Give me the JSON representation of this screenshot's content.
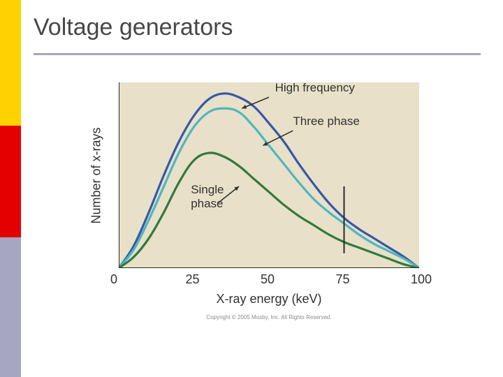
{
  "title": "Voltage generators",
  "colors": {
    "sidebar_yellow": "#ffd200",
    "sidebar_red": "#e40000",
    "sidebar_grey": "#a6a6c2",
    "title_text": "#474747",
    "underline": "#a6a6c2",
    "chart_bg": "#e8e0c8",
    "axis": "#2a2a2a",
    "tick_text": "#313131",
    "curve_high_freq": "#3558a8",
    "curve_three_phase": "#4fb6c0",
    "curve_single_phase": "#2f7a3e",
    "annot_text": "#313131"
  },
  "chart": {
    "type": "line",
    "xlabel": "X-ray energy (keV)",
    "ylabel": "Number of x-rays",
    "xlim": [
      0,
      100
    ],
    "ylim": [
      0,
      100
    ],
    "xtick_step": 25,
    "xticks": [
      0,
      25,
      50,
      75,
      100
    ],
    "yticks_visible": false,
    "background_color": "#e8e0c8",
    "axis_color": "#2a2a2a",
    "axis_width": 2,
    "label_fontsize": 18,
    "tick_fontsize": 18,
    "line_width": 3.2,
    "vertical_marker_x": 75,
    "vertical_marker_color": "#2a2a2a",
    "vertical_marker_width": 2,
    "vertical_marker_y_extent": [
      8,
      44
    ],
    "series": [
      {
        "name": "High frequency",
        "color": "#3558a8",
        "label_xy": [
          52,
          97
        ],
        "arrow_from": [
          50,
          92
        ],
        "arrow_to": [
          41,
          86
        ],
        "points": [
          [
            0,
            0
          ],
          [
            5,
            12
          ],
          [
            10,
            30
          ],
          [
            15,
            50
          ],
          [
            20,
            68
          ],
          [
            25,
            82
          ],
          [
            30,
            91
          ],
          [
            35,
            94
          ],
          [
            40,
            92
          ],
          [
            45,
            87
          ],
          [
            50,
            78
          ],
          [
            55,
            68
          ],
          [
            60,
            56
          ],
          [
            65,
            45
          ],
          [
            70,
            35
          ],
          [
            75,
            27
          ],
          [
            80,
            21
          ],
          [
            85,
            16
          ],
          [
            90,
            11
          ],
          [
            95,
            6
          ],
          [
            100,
            0
          ]
        ]
      },
      {
        "name": "Three phase",
        "color": "#4fb6c0",
        "label_xy": [
          58,
          79
        ],
        "arrow_from": [
          58,
          74
        ],
        "arrow_to": [
          48,
          66
        ],
        "points": [
          [
            0,
            0
          ],
          [
            5,
            10
          ],
          [
            10,
            26
          ],
          [
            15,
            44
          ],
          [
            20,
            62
          ],
          [
            25,
            76
          ],
          [
            30,
            84
          ],
          [
            35,
            86
          ],
          [
            40,
            84
          ],
          [
            45,
            76
          ],
          [
            50,
            66
          ],
          [
            55,
            56
          ],
          [
            60,
            46
          ],
          [
            65,
            37
          ],
          [
            70,
            30
          ],
          [
            75,
            24
          ],
          [
            80,
            18
          ],
          [
            85,
            13
          ],
          [
            90,
            9
          ],
          [
            95,
            5
          ],
          [
            100,
            0
          ]
        ]
      },
      {
        "name": "Single\nphase",
        "color": "#2f7a3e",
        "label_xy": [
          24,
          42
        ],
        "arrow_from": [
          33,
          35
        ],
        "arrow_to": [
          40,
          44
        ],
        "points": [
          [
            0,
            0
          ],
          [
            5,
            6
          ],
          [
            10,
            16
          ],
          [
            15,
            30
          ],
          [
            20,
            46
          ],
          [
            25,
            58
          ],
          [
            30,
            62
          ],
          [
            35,
            60
          ],
          [
            40,
            55
          ],
          [
            45,
            48
          ],
          [
            50,
            41
          ],
          [
            55,
            34
          ],
          [
            60,
            28
          ],
          [
            65,
            23
          ],
          [
            70,
            18
          ],
          [
            75,
            14
          ],
          [
            80,
            11
          ],
          [
            85,
            8
          ],
          [
            90,
            5
          ],
          [
            95,
            2
          ],
          [
            100,
            0
          ]
        ]
      }
    ]
  },
  "copyright": "Copyright © 2005 Mosby, Inc. All Rights Reserved."
}
